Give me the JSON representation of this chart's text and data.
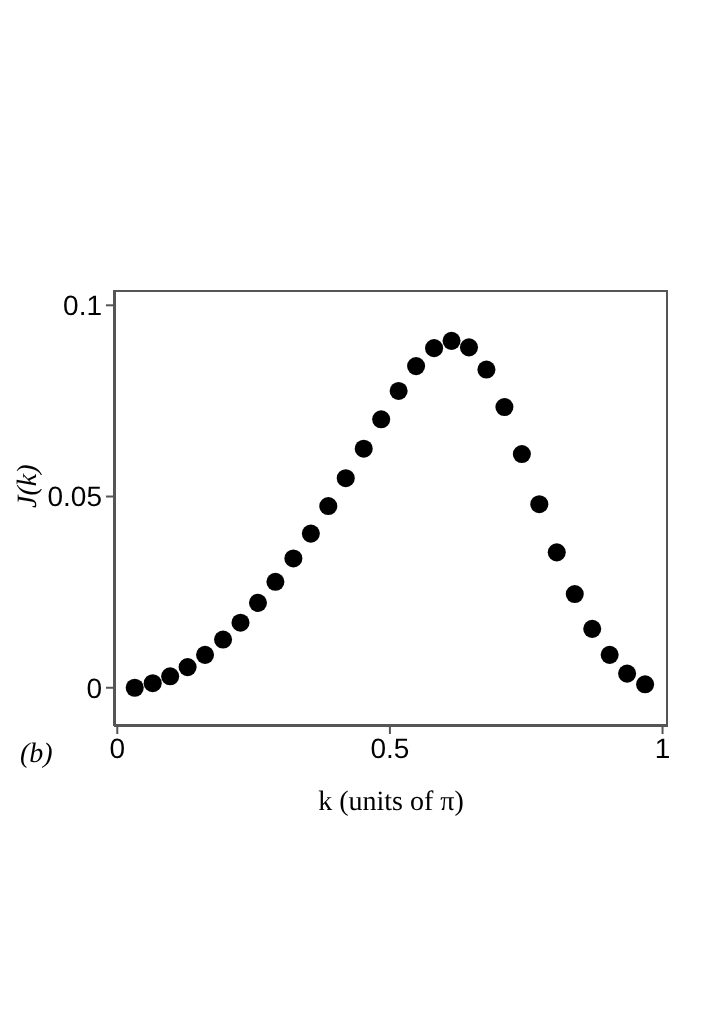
{
  "chart_data": {
    "type": "scatter",
    "xlabel": "k (units of π)",
    "ylabel": "J(k)",
    "annotations": [
      "(b)"
    ],
    "x": [
      0.032,
      0.065,
      0.097,
      0.129,
      0.161,
      0.194,
      0.226,
      0.258,
      0.29,
      0.323,
      0.355,
      0.387,
      0.419,
      0.452,
      0.484,
      0.516,
      0.548,
      0.581,
      0.613,
      0.645,
      0.677,
      0.71,
      0.742,
      0.774,
      0.806,
      0.839,
      0.871,
      0.903,
      0.935,
      0.968
    ],
    "series": [
      {
        "color": "#000000",
        "values": [
          0,
          0.0012,
          0.003,
          0.0054,
          0.0086,
          0.0126,
          0.017,
          0.0222,
          0.0277,
          0.0338,
          0.0403,
          0.0475,
          0.0548,
          0.0625,
          0.0702,
          0.0776,
          0.0841,
          0.0888,
          0.0907,
          0.089,
          0.0832,
          0.0734,
          0.0611,
          0.048,
          0.0354,
          0.0245,
          0.0154,
          0.0086,
          0.0037,
          0.0009
        ]
      }
    ],
    "xlim": [
      -0.006,
      1.01
    ],
    "ylim": [
      -0.01,
      0.104
    ],
    "xticks": [
      0,
      0.5,
      1
    ],
    "yticks": [
      0,
      0.05,
      0.1
    ]
  }
}
